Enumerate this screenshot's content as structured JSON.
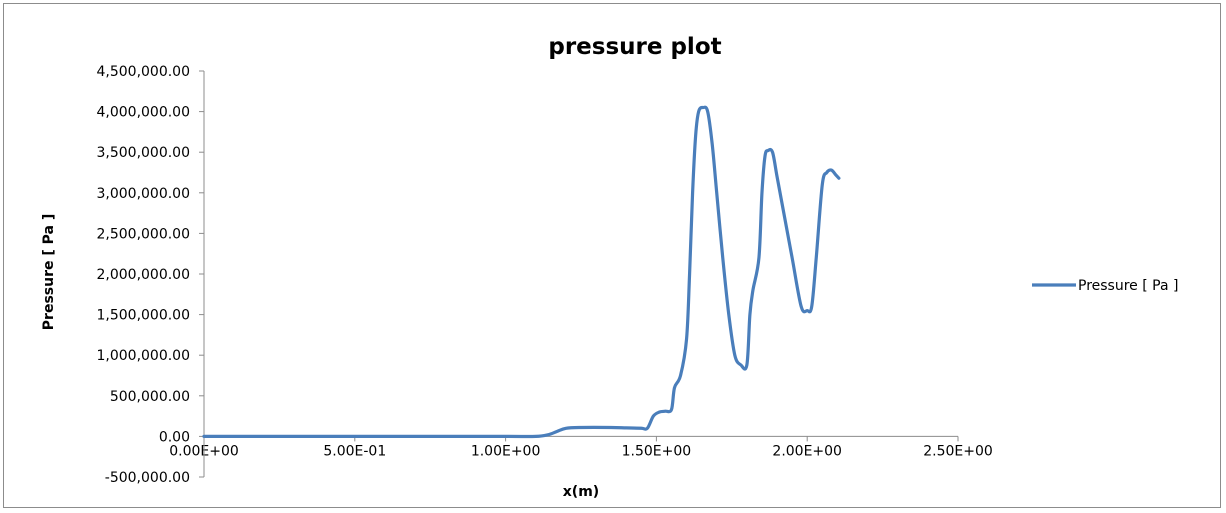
{
  "chart_data": {
    "type": "line",
    "title": "pressure plot",
    "xlabel": "x(m)",
    "ylabel": "Pressure [ Pa ]",
    "xlim": [
      0,
      2.5
    ],
    "ylim": [
      -500000,
      4500000
    ],
    "x_ticks": [
      0,
      0.5,
      1.0,
      1.5,
      2.0,
      2.5
    ],
    "x_tick_labels": [
      "0.00E+00",
      "5.00E-01",
      "1.00E+00",
      "1.50E+00",
      "2.00E+00",
      "2.50E+00"
    ],
    "y_ticks": [
      -500000,
      0,
      500000,
      1000000,
      1500000,
      2000000,
      2500000,
      3000000,
      3500000,
      4000000,
      4500000
    ],
    "y_tick_labels": [
      "-500,000.00",
      "0.00",
      "500,000.00",
      "1,000,000.00",
      "1,500,000.00",
      "2,000,000.00",
      "2,500,000.00",
      "3,000,000.00",
      "3,500,000.00",
      "4,000,000.00",
      "4,500,000.00"
    ],
    "grid": false,
    "legend_position": "right",
    "series": [
      {
        "name": "Pressure [ Pa ]",
        "color": "#4a7ebb",
        "x": [
          0,
          0.25,
          0.5,
          0.75,
          1.0,
          1.1,
          1.14,
          1.17,
          1.2,
          1.25,
          1.35,
          1.4,
          1.45,
          1.47,
          1.49,
          1.51,
          1.53,
          1.55,
          1.56,
          1.58,
          1.6,
          1.61,
          1.62,
          1.63,
          1.64,
          1.655,
          1.67,
          1.685,
          1.7,
          1.72,
          1.74,
          1.76,
          1.78,
          1.8,
          1.81,
          1.82,
          1.84,
          1.85,
          1.86,
          1.87,
          1.885,
          1.9,
          1.92,
          1.95,
          1.98,
          2.0,
          2.015,
          2.03,
          2.05,
          2.065,
          2.08,
          2.095,
          2.105
        ],
        "values": [
          0,
          0,
          0,
          0,
          0,
          0,
          20000,
          60000,
          100000,
          110000,
          110000,
          105000,
          100000,
          100000,
          250000,
          300000,
          310000,
          330000,
          600000,
          750000,
          1200000,
          2000000,
          3000000,
          3700000,
          4000000,
          4050000,
          4000000,
          3600000,
          3000000,
          2200000,
          1500000,
          1000000,
          880000,
          880000,
          1500000,
          1800000,
          2200000,
          3000000,
          3450000,
          3520000,
          3500000,
          3200000,
          2800000,
          2200000,
          1600000,
          1550000,
          1600000,
          2200000,
          3100000,
          3250000,
          3280000,
          3220000,
          3180000
        ]
      }
    ]
  }
}
